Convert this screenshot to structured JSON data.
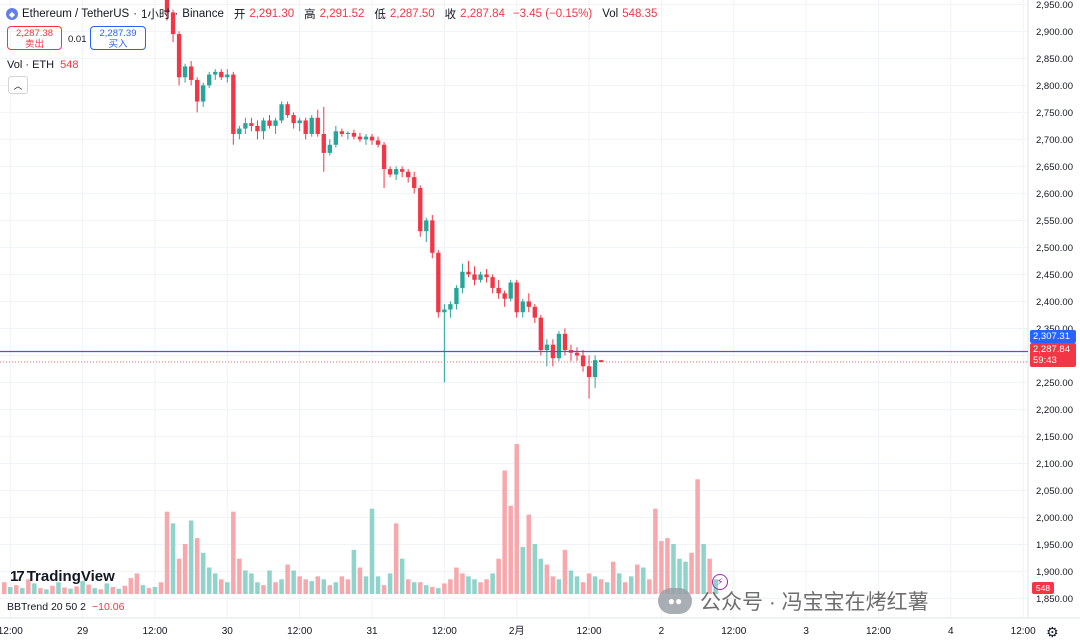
{
  "header": {
    "symbol": "Ethereum / TetherUS",
    "interval": "1小时",
    "exchange": "Binance",
    "sep": "·",
    "ohlc": [
      {
        "key": "开",
        "value": "2,291.30"
      },
      {
        "key": "高",
        "value": "2,291.52"
      },
      {
        "key": "低",
        "value": "2,287.50"
      },
      {
        "key": "收",
        "value": "2,287.84"
      }
    ],
    "change": "−3.45 (−0.15%)",
    "vol_key": "Vol",
    "vol_value": "548.35"
  },
  "trade": {
    "sell_price": "2,287.38",
    "sell_label": "卖出",
    "spread": "0.01",
    "buy_price": "2,287.39",
    "buy_label": "买入"
  },
  "volume_legend": {
    "label": "Vol · ETH",
    "value": "548"
  },
  "bbtrend_legend": {
    "label": "BBTrend 20 50 2",
    "value": "−10.06"
  },
  "logo": {
    "text": "TradingView",
    "mark": "17"
  },
  "price_tags": {
    "blue": "2,307.31",
    "last": "2,287.84",
    "countdown": "59:43",
    "volume": "548"
  },
  "watermark": {
    "text": "公众号 · 冯宝宝在烤红薯"
  },
  "colors": {
    "up": "#26a69a",
    "down": "#f23645",
    "vol_up": "#8fd3cb",
    "vol_down": "#f7a8ad",
    "line": "#2962ff"
  },
  "chart_data": {
    "type": "candlestick",
    "title": "Ethereum / TetherUS · 1小时 · Binance",
    "y_ticks": [
      "2,950.00",
      "2,900.00",
      "2,850.00",
      "2,800.00",
      "2,750.00",
      "2,700.00",
      "2,650.00",
      "2,600.00",
      "2,550.00",
      "2,500.00",
      "2,450.00",
      "2,400.00",
      "2,350.00",
      "2,300.00",
      "2,250.00",
      "2,200.00",
      "2,150.00",
      "2,100.00",
      "2,050.00",
      "2,000.00",
      "1,950.00",
      "1,900.00",
      "1,850.00"
    ],
    "y_tick_values": [
      2950,
      2900,
      2850,
      2800,
      2750,
      2700,
      2650,
      2600,
      2550,
      2500,
      2450,
      2400,
      2350,
      2300,
      2250,
      2200,
      2150,
      2100,
      2050,
      2000,
      1950,
      1900,
      1850
    ],
    "ylim": [
      1814,
      2958
    ],
    "x_ticks": [
      {
        "label": "12:00",
        "t": -2
      },
      {
        "label": "29",
        "t": 10
      },
      {
        "label": "12:00",
        "t": 22
      },
      {
        "label": "30",
        "t": 34
      },
      {
        "label": "12:00",
        "t": 46
      },
      {
        "label": "31",
        "t": 58
      },
      {
        "label": "12:00",
        "t": 70
      },
      {
        "label": "2月",
        "t": 82
      },
      {
        "label": "12:00",
        "t": 94
      },
      {
        "label": "2",
        "t": 106
      },
      {
        "label": "12:00",
        "t": 118
      },
      {
        "label": "3",
        "t": 130
      },
      {
        "label": "12:00",
        "t": 142
      },
      {
        "label": "4",
        "t": 154
      },
      {
        "label": "12:00",
        "t": 166
      }
    ],
    "x_range": [
      -3.7,
      166.8
    ],
    "horizontal_line": 2307.31,
    "last_price": 2287.84,
    "candles_start": 24,
    "candles": [
      [
        2960,
        2965,
        2920,
        2935
      ],
      [
        2935,
        2940,
        2880,
        2895
      ],
      [
        2895,
        2900,
        2800,
        2815
      ],
      [
        2815,
        2840,
        2805,
        2835
      ],
      [
        2835,
        2845,
        2800,
        2810
      ],
      [
        2810,
        2815,
        2750,
        2770
      ],
      [
        2770,
        2805,
        2760,
        2800
      ],
      [
        2800,
        2825,
        2795,
        2820
      ],
      [
        2820,
        2830,
        2810,
        2825
      ],
      [
        2825,
        2830,
        2810,
        2815
      ],
      [
        2815,
        2830,
        2805,
        2820
      ],
      [
        2820,
        2825,
        2690,
        2710
      ],
      [
        2710,
        2725,
        2700,
        2720
      ],
      [
        2720,
        2740,
        2710,
        2730
      ],
      [
        2730,
        2740,
        2715,
        2725
      ],
      [
        2725,
        2735,
        2700,
        2715
      ],
      [
        2715,
        2740,
        2700,
        2735
      ],
      [
        2735,
        2745,
        2720,
        2725
      ],
      [
        2725,
        2740,
        2710,
        2735
      ],
      [
        2735,
        2770,
        2730,
        2765
      ],
      [
        2765,
        2770,
        2740,
        2745
      ],
      [
        2745,
        2750,
        2720,
        2730
      ],
      [
        2730,
        2740,
        2715,
        2735
      ],
      [
        2735,
        2740,
        2700,
        2710
      ],
      [
        2710,
        2745,
        2705,
        2740
      ],
      [
        2740,
        2755,
        2705,
        2710
      ],
      [
        2710,
        2760,
        2640,
        2675
      ],
      [
        2675,
        2700,
        2670,
        2690
      ],
      [
        2690,
        2725,
        2685,
        2715
      ],
      [
        2715,
        2720,
        2705,
        2710
      ],
      [
        2710,
        2715,
        2700,
        2712
      ],
      [
        2712,
        2718,
        2700,
        2705
      ],
      [
        2705,
        2712,
        2695,
        2700
      ],
      [
        2700,
        2710,
        2690,
        2705
      ],
      [
        2705,
        2710,
        2690,
        2698
      ],
      [
        2698,
        2705,
        2685,
        2690
      ],
      [
        2690,
        2695,
        2610,
        2645
      ],
      [
        2645,
        2650,
        2630,
        2635
      ],
      [
        2635,
        2650,
        2625,
        2645
      ],
      [
        2645,
        2650,
        2630,
        2640
      ],
      [
        2640,
        2645,
        2620,
        2630
      ],
      [
        2630,
        2640,
        2600,
        2610
      ],
      [
        2610,
        2615,
        2520,
        2530
      ],
      [
        2530,
        2555,
        2510,
        2550
      ],
      [
        2550,
        2560,
        2480,
        2490
      ],
      [
        2490,
        2495,
        2370,
        2380
      ],
      [
        2380,
        2395,
        2250,
        2385
      ],
      [
        2385,
        2400,
        2370,
        2395
      ],
      [
        2395,
        2430,
        2385,
        2425
      ],
      [
        2425,
        2470,
        2415,
        2455
      ],
      [
        2455,
        2475,
        2445,
        2450
      ],
      [
        2450,
        2465,
        2430,
        2440
      ],
      [
        2440,
        2455,
        2435,
        2450
      ],
      [
        2450,
        2460,
        2435,
        2445
      ],
      [
        2445,
        2450,
        2415,
        2425
      ],
      [
        2425,
        2440,
        2405,
        2415
      ],
      [
        2415,
        2420,
        2390,
        2405
      ],
      [
        2405,
        2440,
        2400,
        2435
      ],
      [
        2435,
        2440,
        2370,
        2380
      ],
      [
        2380,
        2405,
        2370,
        2400
      ],
      [
        2400,
        2415,
        2380,
        2390
      ],
      [
        2390,
        2395,
        2360,
        2370
      ],
      [
        2370,
        2375,
        2300,
        2310
      ],
      [
        2310,
        2330,
        2280,
        2320
      ],
      [
        2320,
        2330,
        2280,
        2295
      ],
      [
        2295,
        2345,
        2290,
        2340
      ],
      [
        2340,
        2350,
        2300,
        2310
      ],
      [
        2310,
        2320,
        2290,
        2305
      ],
      [
        2305,
        2315,
        2290,
        2300
      ],
      [
        2300,
        2310,
        2270,
        2280
      ],
      [
        2280,
        2300,
        2220,
        2260
      ],
      [
        2260,
        2300,
        2240,
        2291.3
      ],
      [
        2291.3,
        2291.52,
        2287.5,
        2287.84
      ]
    ],
    "volume": [
      [
        -3,
        20,
        "d"
      ],
      [
        -2,
        12,
        "u"
      ],
      [
        -1,
        15,
        "d"
      ],
      [
        0,
        10,
        "u"
      ],
      [
        1,
        25,
        "d"
      ],
      [
        2,
        18,
        "u"
      ],
      [
        3,
        10,
        "d"
      ],
      [
        4,
        8,
        "u"
      ],
      [
        5,
        14,
        "d"
      ],
      [
        6,
        20,
        "u"
      ],
      [
        7,
        11,
        "d"
      ],
      [
        8,
        9,
        "u"
      ],
      [
        9,
        13,
        "d"
      ],
      [
        10,
        22,
        "u"
      ],
      [
        11,
        16,
        "d"
      ],
      [
        12,
        10,
        "u"
      ],
      [
        13,
        8,
        "d"
      ],
      [
        14,
        18,
        "u"
      ],
      [
        15,
        12,
        "d"
      ],
      [
        16,
        9,
        "u"
      ],
      [
        17,
        14,
        "d"
      ],
      [
        18,
        27,
        "d"
      ],
      [
        19,
        35,
        "d"
      ],
      [
        20,
        15,
        "u"
      ],
      [
        21,
        10,
        "d"
      ],
      [
        22,
        12,
        "u"
      ],
      [
        23,
        20,
        "d"
      ],
      [
        24,
        140,
        "d"
      ],
      [
        25,
        120,
        "u"
      ],
      [
        26,
        60,
        "d"
      ],
      [
        27,
        85,
        "d"
      ],
      [
        28,
        125,
        "u"
      ],
      [
        29,
        95,
        "d"
      ],
      [
        30,
        70,
        "u"
      ],
      [
        31,
        45,
        "u"
      ],
      [
        32,
        35,
        "u"
      ],
      [
        33,
        25,
        "d"
      ],
      [
        34,
        20,
        "u"
      ],
      [
        35,
        140,
        "d"
      ],
      [
        36,
        60,
        "d"
      ],
      [
        37,
        40,
        "u"
      ],
      [
        38,
        35,
        "u"
      ],
      [
        39,
        20,
        "u"
      ],
      [
        40,
        15,
        "d"
      ],
      [
        41,
        40,
        "u"
      ],
      [
        42,
        20,
        "d"
      ],
      [
        43,
        25,
        "u"
      ],
      [
        44,
        50,
        "d"
      ],
      [
        45,
        40,
        "u"
      ],
      [
        46,
        30,
        "d"
      ],
      [
        47,
        25,
        "d"
      ],
      [
        48,
        22,
        "u"
      ],
      [
        49,
        30,
        "d"
      ],
      [
        50,
        25,
        "u"
      ],
      [
        51,
        15,
        "d"
      ],
      [
        52,
        20,
        "u"
      ],
      [
        53,
        30,
        "d"
      ],
      [
        54,
        25,
        "d"
      ],
      [
        55,
        75,
        "u"
      ],
      [
        56,
        45,
        "d"
      ],
      [
        57,
        30,
        "u"
      ],
      [
        58,
        145,
        "u"
      ],
      [
        59,
        30,
        "u"
      ],
      [
        60,
        15,
        "d"
      ],
      [
        61,
        35,
        "u"
      ],
      [
        62,
        120,
        "d"
      ],
      [
        63,
        60,
        "u"
      ],
      [
        64,
        25,
        "d"
      ],
      [
        65,
        20,
        "u"
      ],
      [
        66,
        20,
        "d"
      ],
      [
        67,
        15,
        "u"
      ],
      [
        68,
        12,
        "d"
      ],
      [
        69,
        10,
        "u"
      ],
      [
        70,
        18,
        "d"
      ],
      [
        71,
        25,
        "d"
      ],
      [
        72,
        45,
        "d"
      ],
      [
        73,
        35,
        "d"
      ],
      [
        74,
        30,
        "u"
      ],
      [
        75,
        25,
        "u"
      ],
      [
        76,
        20,
        "d"
      ],
      [
        77,
        25,
        "d"
      ],
      [
        78,
        35,
        "u"
      ],
      [
        79,
        60,
        "d"
      ],
      [
        80,
        210,
        "d"
      ],
      [
        81,
        150,
        "d"
      ],
      [
        82,
        255,
        "d"
      ],
      [
        83,
        80,
        "u"
      ],
      [
        84,
        135,
        "d"
      ],
      [
        85,
        85,
        "u"
      ],
      [
        86,
        60,
        "u"
      ],
      [
        87,
        50,
        "d"
      ],
      [
        88,
        30,
        "d"
      ],
      [
        89,
        25,
        "u"
      ],
      [
        90,
        75,
        "d"
      ],
      [
        91,
        40,
        "u"
      ],
      [
        92,
        30,
        "u"
      ],
      [
        93,
        20,
        "d"
      ],
      [
        94,
        35,
        "d"
      ],
      [
        95,
        30,
        "u"
      ],
      [
        96,
        25,
        "d"
      ],
      [
        97,
        20,
        "u"
      ],
      [
        98,
        55,
        "d"
      ],
      [
        99,
        35,
        "u"
      ],
      [
        100,
        20,
        "d"
      ],
      [
        101,
        30,
        "u"
      ],
      [
        102,
        50,
        "d"
      ],
      [
        103,
        45,
        "u"
      ],
      [
        104,
        25,
        "d"
      ],
      [
        105,
        145,
        "d"
      ],
      [
        106,
        90,
        "d"
      ],
      [
        107,
        95,
        "d"
      ],
      [
        108,
        85,
        "u"
      ],
      [
        109,
        60,
        "u"
      ],
      [
        110,
        55,
        "u"
      ],
      [
        111,
        70,
        "d"
      ],
      [
        112,
        195,
        "d"
      ],
      [
        113,
        85,
        "u"
      ],
      [
        114,
        60,
        "d"
      ],
      [
        115,
        25,
        "u"
      ]
    ]
  }
}
